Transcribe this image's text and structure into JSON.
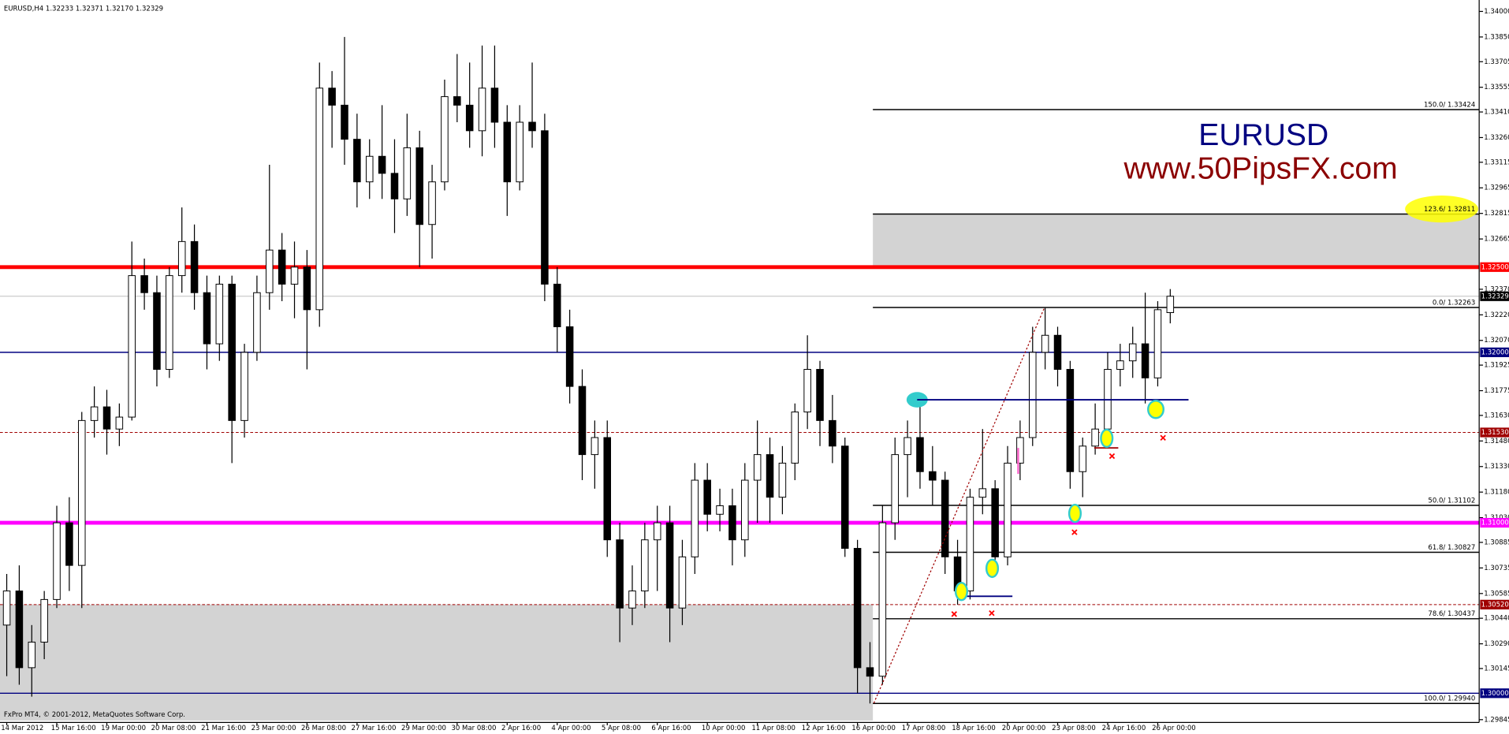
{
  "chart_data": {
    "type": "candlestick",
    "title": "EURUSD,H4  1.32233 1.32371 1.32170 1.32329",
    "footer": "FxPro MT4, © 2001-2012, MetaQuotes Software Corp.",
    "watermark": {
      "symbol": "EURUSD",
      "site": "www.50PipsFX.com"
    },
    "up_color": "#ffffff",
    "down_color": "#000000",
    "categories": [
      "14 Mar 2012",
      null,
      null,
      null,
      "15 Mar 16:00",
      null,
      null,
      null,
      "19 Mar 00:00",
      null,
      null,
      null,
      "20 Mar 08:00",
      null,
      null,
      null,
      "21 Mar 16:00",
      null,
      null,
      null,
      "23 Mar 00:00",
      null,
      null,
      null,
      "26 Mar 08:00",
      null,
      null,
      null,
      "27 Mar 16:00",
      null,
      null,
      null,
      "29 Mar 00:00",
      null,
      null,
      null,
      "30 Mar 08:00",
      null,
      null,
      null,
      "2 Apr 16:00",
      null,
      null,
      null,
      "4 Apr 00:00",
      null,
      null,
      null,
      "5 Apr 08:00",
      null,
      null,
      null,
      "6 Apr 16:00",
      null,
      null,
      null,
      "10 Apr 00:00",
      null,
      null,
      null,
      "11 Apr 08:00",
      null,
      null,
      null,
      "12 Apr 16:00",
      null,
      null,
      null,
      "16 Apr 00:00",
      null,
      null,
      null,
      "17 Apr 08:00",
      null,
      null,
      null,
      "18 Apr 16:00",
      null,
      null,
      null,
      "20 Apr 00:00",
      null,
      null,
      null,
      "23 Apr 08:00",
      null,
      null,
      null,
      "24 Apr 16:00",
      null,
      null,
      null,
      "26 Apr 00:00",
      null
    ],
    "open": [
      1.304,
      1.306,
      1.3015,
      1.303,
      1.3055,
      1.31,
      1.3075,
      1.316,
      1.3168,
      1.3155,
      1.3162,
      1.3245,
      1.3235,
      1.319,
      1.3245,
      1.3265,
      1.3235,
      1.3205,
      1.324,
      1.316,
      1.32,
      1.3235,
      1.326,
      1.324,
      1.325,
      1.3225,
      1.3355,
      1.3345,
      1.3325,
      1.33,
      1.3315,
      1.3305,
      1.329,
      1.332,
      1.3275,
      1.33,
      1.335,
      1.3345,
      1.333,
      1.3355,
      1.3335,
      1.33,
      1.3335,
      1.333,
      1.324,
      1.3215,
      1.318,
      1.314,
      1.315,
      1.309,
      1.305,
      1.306,
      1.309,
      1.31,
      1.305,
      1.308,
      1.3125,
      1.3105,
      1.311,
      1.309,
      1.3125,
      1.314,
      1.3115,
      1.3135,
      1.3165,
      1.319,
      1.316,
      1.3145,
      1.3085,
      1.3015,
      1.301,
      1.31,
      1.314,
      1.315,
      1.313,
      1.3125,
      1.308,
      1.306,
      1.3115,
      1.312,
      1.308,
      1.3135,
      1.315,
      1.32,
      1.321,
      1.319,
      1.313,
      1.3145,
      1.3155,
      1.319,
      1.3195,
      1.3205,
      1.3185,
      1.32233
    ],
    "high": [
      1.307,
      1.3075,
      1.304,
      1.306,
      1.311,
      1.3115,
      1.3165,
      1.318,
      1.3178,
      1.317,
      1.3265,
      1.3255,
      1.3245,
      1.325,
      1.3285,
      1.3275,
      1.3245,
      1.3245,
      1.3245,
      1.3205,
      1.3245,
      1.331,
      1.327,
      1.3265,
      1.326,
      1.337,
      1.3365,
      1.3385,
      1.334,
      1.3325,
      1.3345,
      1.3325,
      1.334,
      1.333,
      1.331,
      1.336,
      1.3375,
      1.337,
      1.338,
      1.338,
      1.3345,
      1.3345,
      1.337,
      1.334,
      1.325,
      1.3225,
      1.319,
      1.316,
      1.316,
      1.31,
      1.3075,
      1.31,
      1.311,
      1.311,
      1.309,
      1.3135,
      1.3135,
      1.312,
      1.312,
      1.3135,
      1.316,
      1.315,
      1.3145,
      1.317,
      1.321,
      1.3195,
      1.3175,
      1.315,
      1.309,
      1.303,
      1.311,
      1.315,
      1.316,
      1.317,
      1.3145,
      1.313,
      1.309,
      1.312,
      1.3155,
      1.3125,
      1.3145,
      1.316,
      1.3215,
      1.3226,
      1.3215,
      1.3195,
      1.315,
      1.317,
      1.32,
      1.3205,
      1.3215,
      1.3235,
      1.323,
      1.32371
    ],
    "low": [
      1.301,
      1.3005,
      1.2998,
      1.302,
      1.305,
      1.306,
      1.305,
      1.315,
      1.314,
      1.3145,
      1.316,
      1.3225,
      1.318,
      1.3185,
      1.3235,
      1.3225,
      1.319,
      1.3195,
      1.3135,
      1.315,
      1.3195,
      1.3225,
      1.323,
      1.322,
      1.319,
      1.3215,
      1.332,
      1.331,
      1.3285,
      1.329,
      1.329,
      1.327,
      1.328,
      1.325,
      1.3255,
      1.3295,
      1.3335,
      1.332,
      1.3315,
      1.332,
      1.328,
      1.3295,
      1.332,
      1.323,
      1.32,
      1.317,
      1.3125,
      1.312,
      1.308,
      1.303,
      1.304,
      1.305,
      1.306,
      1.303,
      1.304,
      1.307,
      1.3095,
      1.3095,
      1.3075,
      1.308,
      1.31,
      1.31,
      1.3105,
      1.3125,
      1.3155,
      1.3145,
      1.3135,
      1.308,
      1.3,
      1.2994,
      1.3005,
      1.309,
      1.3115,
      1.312,
      1.311,
      1.307,
      1.3052,
      1.3055,
      1.3105,
      1.307,
      1.3075,
      1.3125,
      1.3145,
      1.319,
      1.318,
      1.312,
      1.3115,
      1.314,
      1.315,
      1.318,
      1.3185,
      1.317,
      1.318,
      1.3217
    ],
    "close": [
      1.306,
      1.3015,
      1.303,
      1.3055,
      1.31,
      1.3075,
      1.316,
      1.3168,
      1.3155,
      1.3162,
      1.3245,
      1.3235,
      1.319,
      1.3245,
      1.3265,
      1.3235,
      1.3205,
      1.324,
      1.316,
      1.32,
      1.3235,
      1.326,
      1.324,
      1.325,
      1.3225,
      1.3355,
      1.3345,
      1.3325,
      1.33,
      1.3315,
      1.3305,
      1.329,
      1.332,
      1.3275,
      1.33,
      1.335,
      1.3345,
      1.333,
      1.3355,
      1.3335,
      1.33,
      1.3335,
      1.333,
      1.324,
      1.3215,
      1.318,
      1.314,
      1.315,
      1.309,
      1.305,
      1.306,
      1.309,
      1.31,
      1.305,
      1.308,
      1.3125,
      1.3105,
      1.311,
      1.309,
      1.3125,
      1.314,
      1.3115,
      1.3135,
      1.3165,
      1.319,
      1.316,
      1.3145,
      1.3085,
      1.3015,
      1.301,
      1.31,
      1.314,
      1.315,
      1.313,
      1.3125,
      1.308,
      1.306,
      1.3115,
      1.312,
      1.308,
      1.3135,
      1.315,
      1.32,
      1.321,
      1.319,
      1.313,
      1.3145,
      1.3155,
      1.319,
      1.3195,
      1.3205,
      1.3185,
      1.3225,
      1.32329
    ],
    "ylim": [
      1.2984,
      1.3405
    ],
    "yticks": [
      {
        "value": 1.34,
        "label": "1.34000"
      },
      {
        "value": 1.3385,
        "label": "1.33850"
      },
      {
        "value": 1.33705,
        "label": "1.33705"
      },
      {
        "value": 1.33555,
        "label": "1.33555"
      },
      {
        "value": 1.3341,
        "label": "1.33410"
      },
      {
        "value": 1.3326,
        "label": "1.33260"
      },
      {
        "value": 1.33115,
        "label": "1.33115"
      },
      {
        "value": 1.32965,
        "label": "1.32965"
      },
      {
        "value": 1.32815,
        "label": "1.32815"
      },
      {
        "value": 1.32665,
        "label": "1.32665"
      },
      {
        "value": 1.3237,
        "label": "1.32370"
      },
      {
        "value": 1.3222,
        "label": "1.32220"
      },
      {
        "value": 1.3207,
        "label": "1.32070"
      },
      {
        "value": 1.31925,
        "label": "1.31925"
      },
      {
        "value": 1.31775,
        "label": "1.31775"
      },
      {
        "value": 1.3163,
        "label": "1.31630"
      },
      {
        "value": 1.3148,
        "label": "1.31480"
      },
      {
        "value": 1.3133,
        "label": "1.31330"
      },
      {
        "value": 1.3118,
        "label": "1.31180"
      },
      {
        "value": 1.3103,
        "label": "1.31030"
      },
      {
        "value": 1.30885,
        "label": "1.30885"
      },
      {
        "value": 1.30735,
        "label": "1.30735"
      },
      {
        "value": 1.30585,
        "label": "1.30585"
      },
      {
        "value": 1.3044,
        "label": "1.30440"
      },
      {
        "value": 1.3029,
        "label": "1.30290"
      },
      {
        "value": 1.30145,
        "label": "1.30145"
      },
      {
        "value": 1.29845,
        "label": "1.29845"
      }
    ],
    "levels": [
      {
        "value": 1.325,
        "label": "1.32500",
        "color": "#ff0000",
        "style": "thick"
      },
      {
        "value": 1.32,
        "label": "1.32000",
        "color": "#000080",
        "style": "solid"
      },
      {
        "value": 1.3153,
        "label": "1.31530",
        "color": "#a00000",
        "style": "dashed"
      },
      {
        "value": 1.31,
        "label": "1.31000",
        "color": "#ff00ff",
        "style": "thick"
      },
      {
        "value": 1.3052,
        "label": "1.30520",
        "color": "#a00000",
        "style": "dashed"
      },
      {
        "value": 1.3,
        "label": "1.30000",
        "color": "#000080",
        "style": "solid"
      }
    ],
    "last": {
      "value": 1.32329,
      "label": "1.32329",
      "color": "#000000"
    },
    "fibonacci": [
      {
        "value": 1.33424,
        "label": "150.0/ 1.33424"
      },
      {
        "value": 1.32811,
        "label": "123.6/ 1.32811"
      },
      {
        "value": 1.32263,
        "label": "0.0/ 1.32263"
      },
      {
        "value": 1.31102,
        "label": "50.0/ 1.31102"
      },
      {
        "value": 1.30827,
        "label": "61.8/ 1.30827"
      },
      {
        "value": 1.30437,
        "label": "78.6/ 1.30437"
      },
      {
        "value": 1.2994,
        "label": "100.0/ 1.29940"
      }
    ]
  }
}
